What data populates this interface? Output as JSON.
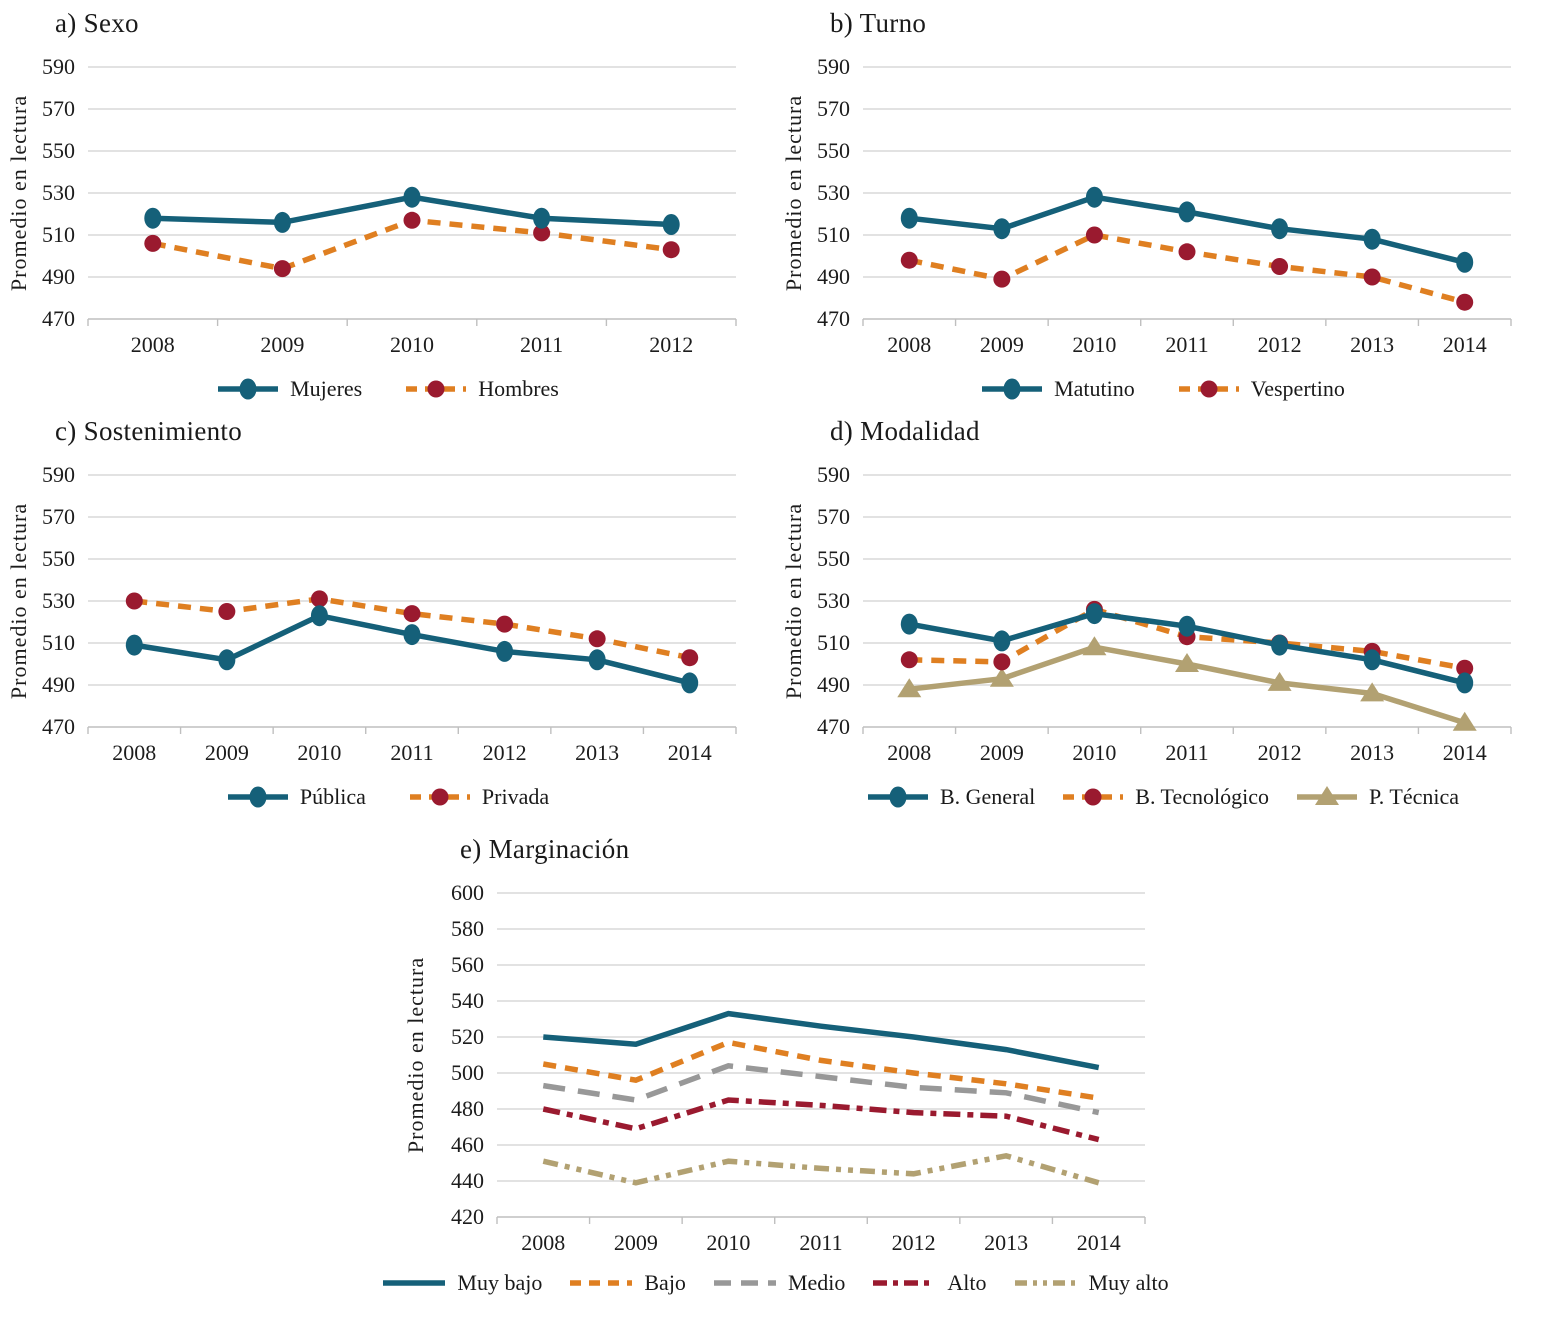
{
  "colors": {
    "teal": "#156079",
    "orange": "#DF7F21",
    "dark_red": "#9A1A2F",
    "tan": "#B2A172",
    "gray": "#989898",
    "gridline": "#D9D9D9",
    "axis": "#BFBFBF",
    "text": "#1C1C1C"
  },
  "chart_data": [
    {
      "id": "a",
      "title": "a) Sexo",
      "type": "line",
      "ylabel": "Promedio en lectura",
      "categories": [
        "2008",
        "2009",
        "2010",
        "2011",
        "2012"
      ],
      "ylim": [
        470,
        590
      ],
      "ytick_step": 20,
      "grid": "horizontal",
      "legend_position": "bottom",
      "series": [
        {
          "name": "Mujeres",
          "values": [
            518,
            516,
            528,
            518,
            515
          ],
          "color": "#156079",
          "line": "solid",
          "marker": "ellipse",
          "marker_color": "#156079"
        },
        {
          "name": "Hombres",
          "values": [
            506,
            494,
            517,
            511,
            503
          ],
          "color": "#DF7F21",
          "line": "dashed",
          "marker": "circle",
          "marker_color": "#9A1A2F"
        }
      ]
    },
    {
      "id": "b",
      "title": "b) Turno",
      "type": "line",
      "ylabel": "Promedio en lectura",
      "categories": [
        "2008",
        "2009",
        "2010",
        "2011",
        "2012",
        "2013",
        "2014"
      ],
      "ylim": [
        470,
        590
      ],
      "ytick_step": 20,
      "grid": "horizontal",
      "legend_position": "bottom",
      "series": [
        {
          "name": "Matutino",
          "values": [
            518,
            513,
            528,
            521,
            513,
            508,
            497
          ],
          "color": "#156079",
          "line": "solid",
          "marker": "ellipse",
          "marker_color": "#156079"
        },
        {
          "name": "Vespertino",
          "values": [
            498,
            489,
            510,
            502,
            495,
            490,
            478
          ],
          "color": "#DF7F21",
          "line": "dashed",
          "marker": "circle",
          "marker_color": "#9A1A2F"
        }
      ]
    },
    {
      "id": "c",
      "title": "c) Sostenimiento",
      "type": "line",
      "ylabel": "Promedio en lectura",
      "categories": [
        "2008",
        "2009",
        "2010",
        "2011",
        "2012",
        "2013",
        "2014"
      ],
      "ylim": [
        470,
        590
      ],
      "ytick_step": 20,
      "grid": "horizontal",
      "legend_position": "bottom",
      "series": [
        {
          "name": "Pública",
          "values": [
            509,
            502,
            523,
            514,
            506,
            502,
            491
          ],
          "color": "#156079",
          "line": "solid",
          "marker": "ellipse",
          "marker_color": "#156079"
        },
        {
          "name": "Privada",
          "values": [
            530,
            525,
            531,
            524,
            519,
            512,
            503
          ],
          "color": "#DF7F21",
          "line": "dashed",
          "marker": "circle",
          "marker_color": "#9A1A2F"
        }
      ]
    },
    {
      "id": "d",
      "title": "d) Modalidad",
      "type": "line",
      "ylabel": "Promedio en lectura",
      "categories": [
        "2008",
        "2009",
        "2010",
        "2011",
        "2012",
        "2013",
        "2014"
      ],
      "ylim": [
        470,
        590
      ],
      "ytick_step": 20,
      "grid": "horizontal",
      "legend_position": "bottom",
      "series": [
        {
          "name": "B. General",
          "values": [
            519,
            511,
            524,
            518,
            509,
            502,
            491
          ],
          "color": "#156079",
          "line": "solid",
          "marker": "ellipse",
          "marker_color": "#156079"
        },
        {
          "name": "B. Tecnológico",
          "values": [
            502,
            501,
            526,
            513,
            510,
            506,
            498
          ],
          "color": "#DF7F21",
          "line": "dashed",
          "marker": "circle",
          "marker_color": "#9A1A2F"
        },
        {
          "name": "P. Técnica",
          "values": [
            488,
            493,
            508,
            500,
            491,
            486,
            472
          ],
          "color": "#B2A172",
          "line": "solid",
          "marker": "triangle",
          "marker_color": "#B2A172"
        }
      ]
    },
    {
      "id": "e",
      "title": "e) Marginación",
      "type": "line",
      "ylabel": "Promedio en lectura",
      "categories": [
        "2008",
        "2009",
        "2010",
        "2011",
        "2012",
        "2013",
        "2014"
      ],
      "ylim": [
        420,
        600
      ],
      "ytick_step": 20,
      "grid": "horizontal",
      "legend_position": "bottom",
      "series": [
        {
          "name": "Muy bajo",
          "values": [
            520,
            516,
            533,
            526,
            520,
            513,
            503
          ],
          "color": "#156079",
          "line": "solid",
          "marker": "none"
        },
        {
          "name": "Bajo",
          "values": [
            505,
            496,
            517,
            507,
            500,
            494,
            486
          ],
          "color": "#DF7F21",
          "line": "dashed",
          "marker": "none"
        },
        {
          "name": "Medio",
          "values": [
            493,
            485,
            504,
            498,
            492,
            489,
            478
          ],
          "color": "#989898",
          "line": "long-dash",
          "marker": "none"
        },
        {
          "name": "Alto",
          "values": [
            480,
            469,
            485,
            482,
            478,
            476,
            463
          ],
          "color": "#9A1A2F",
          "line": "dash-dot",
          "marker": "none"
        },
        {
          "name": "Muy alto",
          "values": [
            451,
            439,
            451,
            447,
            444,
            454,
            439
          ],
          "color": "#B2A172",
          "line": "dash-dot-dot",
          "marker": "none"
        }
      ]
    }
  ]
}
